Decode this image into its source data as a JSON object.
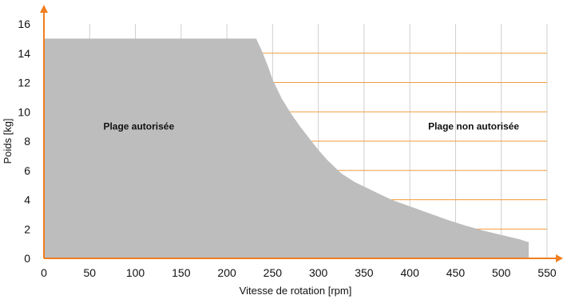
{
  "chart_data": {
    "type": "area",
    "title": "",
    "xlabel": "Vitesse de rotation [rpm]",
    "ylabel": "Poids [kg]",
    "xlim": [
      0,
      550
    ],
    "ylim": [
      0,
      16
    ],
    "x_ticks": [
      0,
      50,
      100,
      150,
      200,
      250,
      300,
      350,
      400,
      450,
      500,
      550
    ],
    "y_ticks": [
      0,
      2,
      4,
      6,
      8,
      10,
      12,
      14,
      16
    ],
    "grid": {
      "vertical": true,
      "horizontal": true
    },
    "series": [
      {
        "x": [
          0,
          232,
          238,
          245,
          250,
          260,
          270,
          280,
          290,
          300,
          310,
          320,
          325,
          340,
          360,
          380,
          400,
          420,
          440,
          460,
          480,
          500,
          520,
          530
        ],
        "y": [
          15,
          15,
          14.2,
          13.1,
          12.2,
          10.9,
          9.9,
          9.0,
          8.2,
          7.4,
          6.7,
          6.1,
          5.8,
          5.2,
          4.6,
          4.0,
          3.55,
          3.1,
          2.65,
          2.25,
          1.9,
          1.6,
          1.3,
          1.1
        ]
      }
    ],
    "annotations": [
      {
        "text": "Plage autorisée",
        "x": 65,
        "y": 9
      },
      {
        "text": "Plage non autorisée",
        "x": 420,
        "y": 9
      }
    ],
    "colors": {
      "fill": "#bdbdbd",
      "grid_vertical": "#cfcfcf",
      "grid_horizontal": "#f39a3d",
      "axis": "#f07f20",
      "text": "#111111"
    }
  }
}
